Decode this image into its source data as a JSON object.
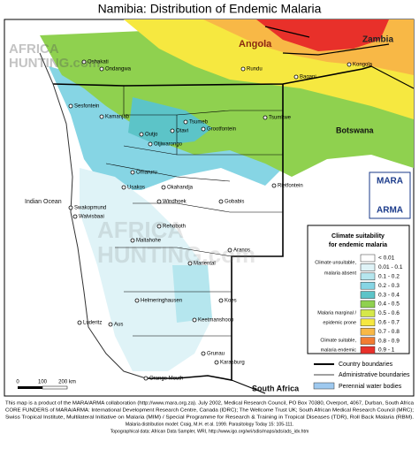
{
  "title": "Namibia: Distribution of Endemic Malaria",
  "countries": [
    "Angola",
    "Zambia",
    "Botswana",
    "South Africa"
  ],
  "ocean": "Indian Ocean",
  "watermark": [
    "AFRICA",
    "HUNTING.com"
  ],
  "towns": [
    "Oshakati",
    "Ondangwa",
    "Rundu",
    "Bagani",
    "Kongola",
    "Sesfontein",
    "Kamanjab",
    "Tsumeb",
    "Otavi",
    "Grootfontein",
    "Tsumkwe",
    "Outjo",
    "Otjiwarongo",
    "Omaruru",
    "Usakos",
    "Okahandja",
    "Gobabis",
    "Windhoek",
    "Swakopmund",
    "Walvisbaai",
    "Rietfontein",
    "Rehoboth",
    "Maltahohe",
    "Aranos",
    "Mariental",
    "Helmeringhausen",
    "Koes",
    "Keetmanshoop",
    "Luderitz",
    "Aus",
    "Grunau",
    "Karasburg",
    "Orange Mouth"
  ],
  "logo": [
    "MARA",
    "ARMA"
  ],
  "legend": {
    "title": [
      "Climate suitability",
      "for endemic malaria"
    ],
    "groups": [
      [
        "Climate unsuitable,",
        "malaria absent"
      ],
      [
        "Malaria marginal /",
        "epidemic prone"
      ],
      [
        "Climate suitable,",
        "malaria endemic"
      ]
    ],
    "classes": [
      {
        "label": "< 0.01",
        "color": "#ffffff"
      },
      {
        "label": "0.01 - 0.1",
        "color": "#dff3f7"
      },
      {
        "label": "0.1 - 0.2",
        "color": "#b5e6ee"
      },
      {
        "label": "0.2 - 0.3",
        "color": "#86d5e4"
      },
      {
        "label": "0.3 - 0.4",
        "color": "#5cc4c8"
      },
      {
        "label": "0.4 - 0.5",
        "color": "#8fd14f"
      },
      {
        "label": "0.5 - 0.6",
        "color": "#d5e84a"
      },
      {
        "label": "0.6 - 0.7",
        "color": "#f6e840"
      },
      {
        "label": "0.7 - 0.8",
        "color": "#f8b846"
      },
      {
        "label": "0.8 - 0.9",
        "color": "#f27c32"
      },
      {
        "label": "0.9 - 1",
        "color": "#e8302a"
      }
    ],
    "lines": [
      "Country boundaries",
      "Administrative boundaries",
      "Perennial water bodies"
    ]
  },
  "scale": [
    "0",
    "100",
    "200 km"
  ],
  "footer": [
    "This map is a product of the MARA/ARMA collaboration (http://www.mara.org.za). July 2002, Medical Research Council, PO Box 70380, Overport, 4067, Durban, South Africa",
    "CORE FUNDERS of MARA/ARMA: International Development Research Centre, Canada (IDRC); The Wellcome Trust UK; South African Medical Research Council (MRC);",
    "Swiss Tropical Institute, Multilateral Initiative on Malaria (MIM) / Special Programme for Research & Training in Tropical Diseases (TDR), Roll Back Malaria (RBM).",
    "Malaria distribution model: Craig, M.H. et al. 1999. Parasitology Today 15: 105-111.",
    "Topographical data: African Data Sampler, WRI, http://www.igo.org/wri/sdis/maps/ads/ads_idx.htm"
  ]
}
